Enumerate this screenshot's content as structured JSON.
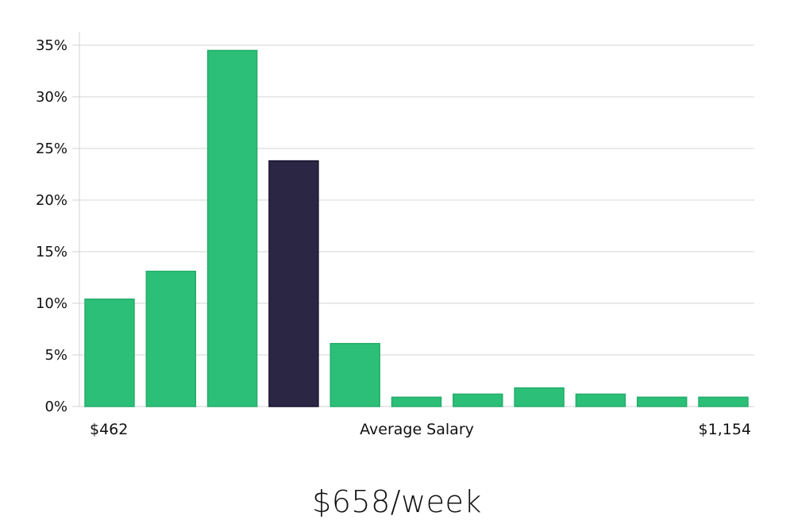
{
  "chart_data": {
    "type": "bar",
    "values": [
      10.4,
      13.1,
      34.5,
      23.8,
      6.1,
      0.9,
      1.2,
      1.8,
      1.2,
      0.9,
      0.9
    ],
    "highlight_index": 3,
    "ylim": [
      0,
      35
    ],
    "yticks": [
      "0%",
      "5%",
      "10%",
      "15%",
      "20%",
      "25%",
      "30%",
      "35%"
    ],
    "ytick_values": [
      0,
      5,
      10,
      15,
      20,
      25,
      30,
      35
    ],
    "x_left_label": "$462",
    "x_center_label": "Average Salary",
    "x_right_label": "$1,154",
    "grid": true,
    "colors": {
      "bar": "#2bbf77",
      "bar_edge": "#25ad6b",
      "highlight": "#2a2644",
      "highlight_edge": "#1a1733"
    }
  },
  "caption": "$658/week"
}
